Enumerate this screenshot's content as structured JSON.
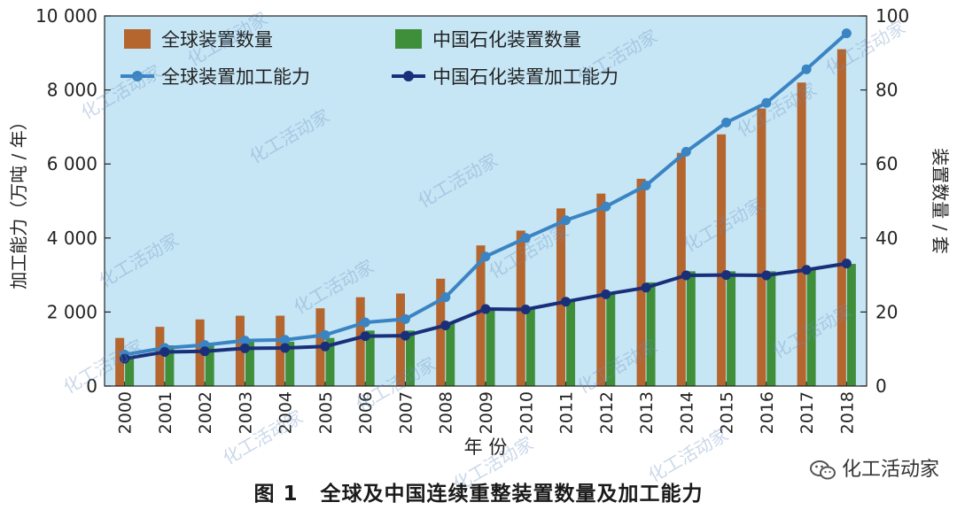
{
  "figure_caption": {
    "number": "图 1",
    "text": "全球及中国连续重整装置数量及加工能力"
  },
  "brand": "化工活动家",
  "watermark_text": "化工活动家",
  "colors": {
    "plot_bg": "#c6e6f5",
    "bar_global": "#b5652e",
    "bar_china": "#3f8f3a",
    "line_global": "#3b84c4",
    "line_china": "#1a2f7a"
  },
  "chart_data": {
    "type": "bar+line",
    "title": "全球及中国连续重整装置数量及加工能力",
    "xlabel": "年 份",
    "ylabel_left": "加工能力（万吨 / 年）",
    "ylabel_right": "装置数量 / 套",
    "left_ylim": [
      0,
      10000
    ],
    "right_ylim": [
      0,
      100
    ],
    "left_ticks": [
      "0",
      "2 000",
      "4 000",
      "6 000",
      "8 000",
      "10 000"
    ],
    "right_ticks": [
      "0",
      "20",
      "40",
      "60",
      "80",
      "100"
    ],
    "categories": [
      "2000",
      "2001",
      "2002",
      "2003",
      "2004",
      "2005",
      "2006",
      "2007",
      "2008",
      "2009",
      "2010",
      "2011",
      "2012",
      "2013",
      "2014",
      "2015",
      "2016",
      "2017",
      "2018"
    ],
    "legend_position": "top-left",
    "bar_series": [
      {
        "name": "全球装置数量",
        "axis": "right",
        "values": [
          13,
          16,
          18,
          19,
          19,
          21,
          24,
          25,
          29,
          38,
          42,
          48,
          52,
          56,
          63,
          68,
          75,
          82,
          91
        ]
      },
      {
        "name": "中国石化装置数量",
        "axis": "right",
        "values": [
          8,
          11,
          11,
          12,
          12,
          13,
          15,
          15,
          17,
          21,
          21,
          23,
          25,
          28,
          31,
          31,
          31,
          32,
          33
        ]
      }
    ],
    "line_series": [
      {
        "name": "全球装置加工能力",
        "axis": "left",
        "values": [
          850,
          1030,
          1110,
          1230,
          1250,
          1380,
          1720,
          1810,
          2400,
          3500,
          4000,
          4480,
          4850,
          5420,
          6330,
          7120,
          7650,
          8560,
          9530
        ]
      },
      {
        "name": "中国石化装置加工能力",
        "axis": "left",
        "values": [
          740,
          920,
          940,
          1020,
          1030,
          1070,
          1350,
          1360,
          1640,
          2080,
          2070,
          2280,
          2480,
          2660,
          2990,
          3000,
          2990,
          3140,
          3310
        ]
      }
    ]
  }
}
